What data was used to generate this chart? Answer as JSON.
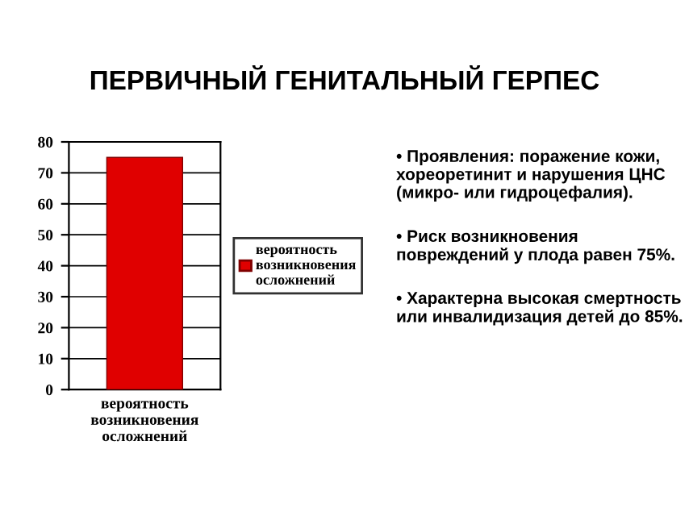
{
  "chart_data": {
    "type": "bar",
    "title": "ПЕРВИЧНЫЙ ГЕНИТАЛЬНЫЙ ГЕРПЕС",
    "categories": [
      "вероятность возникновения осложнений"
    ],
    "series": [
      {
        "name": "вероятность возникновения осложнений",
        "color": "#e00000",
        "values": [
          75
        ]
      }
    ],
    "ylim": [
      0,
      80
    ],
    "yticks": [
      0,
      10,
      20,
      30,
      40,
      50,
      60,
      70,
      80
    ],
    "grid": "y",
    "legend": "right",
    "annotations": [
      "• Проявления: поражение кожи, хореоретинит и нарушения ЦНС (микро- или гидроцефалия).",
      "• Риск возникновения повреждений у плода равен 75%.",
      "• Характерна высокая смертность или инвалидизация детей до 85%."
    ]
  }
}
